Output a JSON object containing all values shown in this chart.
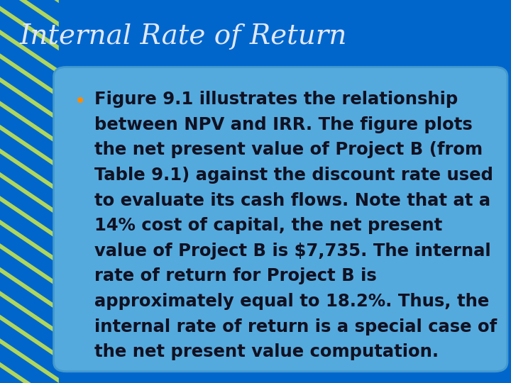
{
  "title": "Internal Rate of Return",
  "title_color": "#E0E8F8",
  "title_fontsize": 28,
  "bg_color": "#0066CC",
  "header_bg": "#0077DD",
  "content_bg": "#55AADD",
  "content_border": "#4499CC",
  "bullet_color": "#FF8C00",
  "text_color": "#111122",
  "stripe_color": "#BBDD55",
  "text_lines": [
    "Figure 9.1 illustrates the relationship",
    "between NPV and IRR. The figure plots",
    "the net present value of Project B (from",
    "Table 9.1) against the discount rate used",
    "to evaluate its cash flows. Note that at a",
    "14% cost of capital, the net present",
    "value of Project B is $7,735. The internal",
    "rate of return for Project B is",
    "approximately equal to 18.2%. Thus, the",
    "internal rate of return is a special case of",
    "the net present value computation."
  ],
  "text_fontsize": 17.5,
  "figsize": [
    7.2,
    5.4
  ],
  "dpi": 100
}
